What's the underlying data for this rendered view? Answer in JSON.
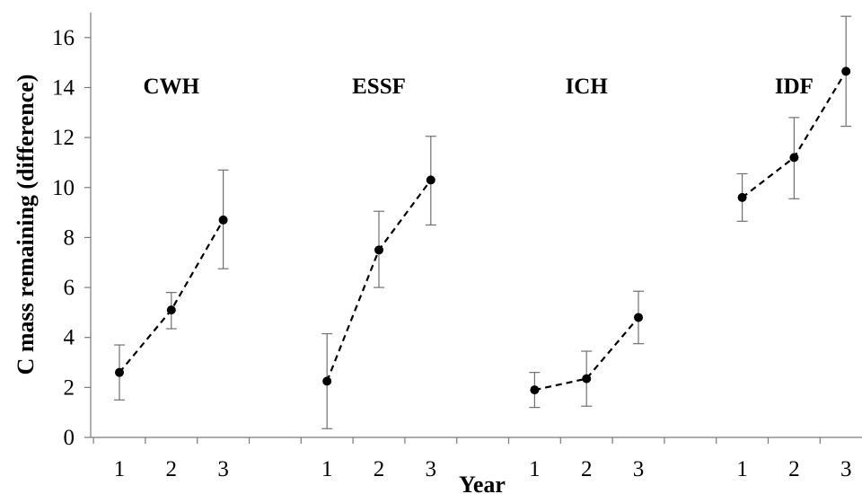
{
  "chart_data": {
    "type": "scatter",
    "xlabel": "Year",
    "ylabel": "C mass remaining (difference)",
    "ylim": [
      0,
      17
    ],
    "yticks": [
      "0",
      "2",
      "4",
      "6",
      "8",
      "10",
      "12",
      "14",
      "16"
    ],
    "grid": false,
    "legend": "none",
    "line_style": "dashed",
    "groups": [
      {
        "label": "CWH",
        "x": [
          "1",
          "2",
          "3"
        ],
        "y": [
          2.6,
          5.1,
          8.7
        ],
        "err_low": [
          1.5,
          4.35,
          6.75
        ],
        "err_high": [
          3.7,
          5.8,
          10.7
        ]
      },
      {
        "label": "ESSF",
        "x": [
          "1",
          "2",
          "3"
        ],
        "y": [
          2.25,
          7.5,
          10.3
        ],
        "err_low": [
          0.35,
          6.0,
          8.5
        ],
        "err_high": [
          4.15,
          9.05,
          12.05
        ]
      },
      {
        "label": "ICH",
        "x": [
          "1",
          "2",
          "3"
        ],
        "y": [
          1.9,
          2.35,
          4.8
        ],
        "err_low": [
          1.2,
          1.25,
          3.75
        ],
        "err_high": [
          2.6,
          3.45,
          5.85
        ]
      },
      {
        "label": "IDF",
        "x": [
          "1",
          "2",
          "3"
        ],
        "y": [
          9.6,
          11.2,
          14.65
        ],
        "err_low": [
          8.65,
          9.55,
          12.45
        ],
        "err_high": [
          10.55,
          12.8,
          16.85
        ]
      }
    ]
  }
}
